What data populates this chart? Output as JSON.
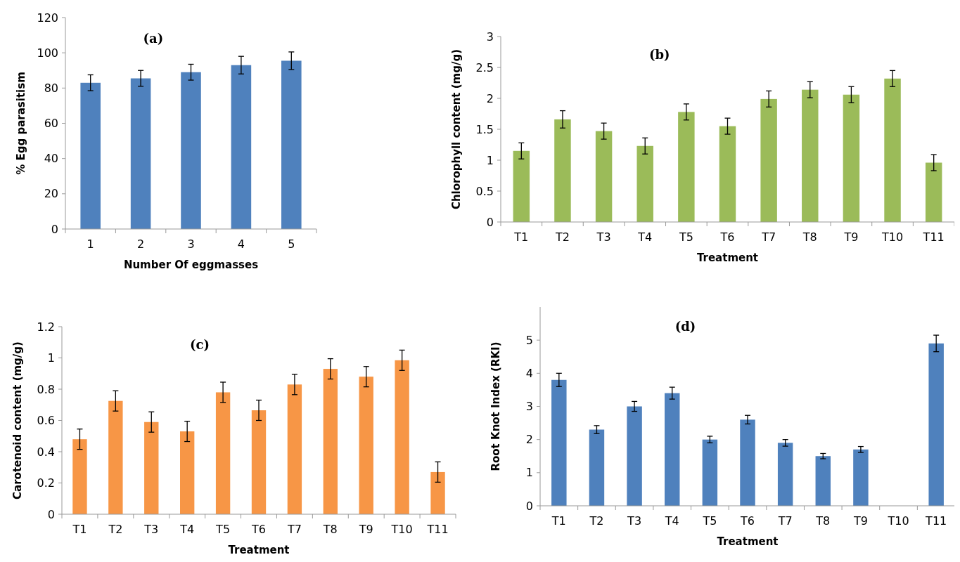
{
  "chart_data": [
    {
      "type": "bar",
      "title": "(a)",
      "xlabel": "Number Of eggmasses",
      "ylabel": "% Egg parasitism",
      "categories": [
        "1",
        "2",
        "3",
        "4",
        "5"
      ],
      "values": [
        83,
        85.5,
        89,
        93,
        95.5
      ],
      "errors": [
        4.5,
        4.5,
        4.5,
        5,
        5
      ],
      "color": "#4f81bd",
      "ylim": [
        0,
        120
      ],
      "yticks": [
        0,
        20,
        40,
        60,
        80,
        100,
        120
      ],
      "grid": false
    },
    {
      "type": "bar",
      "title": "(b)",
      "xlabel": "Treatment",
      "ylabel": "Chlorophyll content (mg/g)",
      "categories": [
        "T1",
        "T2",
        "T3",
        "T4",
        "T5",
        "T6",
        "T7",
        "T8",
        "T9",
        "T10",
        "T11"
      ],
      "values": [
        1.15,
        1.66,
        1.47,
        1.23,
        1.78,
        1.55,
        1.99,
        2.14,
        2.06,
        2.32,
        0.96
      ],
      "errors": [
        0.13,
        0.14,
        0.13,
        0.13,
        0.13,
        0.13,
        0.13,
        0.13,
        0.13,
        0.13,
        0.13
      ],
      "color": "#9bbb59",
      "ylim": [
        0,
        3
      ],
      "yticks": [
        0,
        0.5,
        1,
        1.5,
        2,
        2.5,
        3
      ],
      "grid": false
    },
    {
      "type": "bar",
      "title": "(c)",
      "xlabel": "Treatment",
      "ylabel": "Carotenoid content (mg/g)",
      "categories": [
        "T1",
        "T2",
        "T3",
        "T4",
        "T5",
        "T6",
        "T7",
        "T8",
        "T9",
        "T10",
        "T11"
      ],
      "values": [
        0.48,
        0.725,
        0.59,
        0.53,
        0.78,
        0.665,
        0.83,
        0.93,
        0.88,
        0.985,
        0.27
      ],
      "errors": [
        0.065,
        0.065,
        0.065,
        0.065,
        0.065,
        0.065,
        0.065,
        0.065,
        0.065,
        0.065,
        0.065
      ],
      "color": "#f79646",
      "ylim": [
        0,
        1.2
      ],
      "yticks": [
        0,
        0.2,
        0.4,
        0.6,
        0.8,
        1,
        1.2
      ],
      "grid": false
    },
    {
      "type": "bar",
      "title": "(d)",
      "xlabel": "Treatment",
      "ylabel": "Root Knot Index (RKI)",
      "categories": [
        "T1",
        "T2",
        "T3",
        "T4",
        "T5",
        "T6",
        "T7",
        "T8",
        "T9",
        "T10",
        "T11"
      ],
      "values": [
        3.8,
        2.3,
        3.0,
        3.4,
        2.0,
        2.6,
        1.9,
        1.5,
        1.7,
        0,
        4.9
      ],
      "errors": [
        0.2,
        0.12,
        0.15,
        0.18,
        0.1,
        0.13,
        0.1,
        0.08,
        0.09,
        null,
        0.25
      ],
      "color": "#4f81bd",
      "ylim": [
        0,
        6
      ],
      "yticks": [
        0,
        1,
        2,
        3,
        4,
        5
      ],
      "grid": false
    }
  ]
}
